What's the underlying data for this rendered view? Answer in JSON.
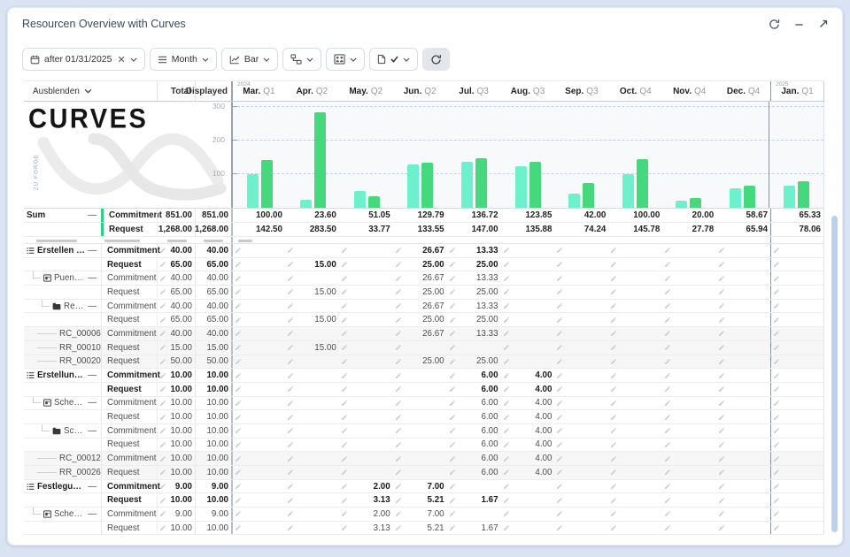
{
  "window": {
    "title": "Resourcen Overview with Curves"
  },
  "toolbar": {
    "date_filter": {
      "text": "after 01/31/2025"
    },
    "interval": {
      "text": "Month"
    },
    "chart_type": {
      "text": "Bar"
    }
  },
  "logo": {
    "title": "CURVES",
    "vertical_text": "2U FORGE"
  },
  "table": {
    "hide_label": "Ausblenden",
    "columns": {
      "total": "Total",
      "displayed": "Displayed"
    },
    "months": [
      {
        "label": "Mar.",
        "quarter": "Q1",
        "year": "2024"
      },
      {
        "label": "Apr.",
        "quarter": "Q2"
      },
      {
        "label": "May.",
        "quarter": "Q2"
      },
      {
        "label": "Jun.",
        "quarter": "Q2"
      },
      {
        "label": "Jul.",
        "quarter": "Q3"
      },
      {
        "label": "Aug.",
        "quarter": "Q3"
      },
      {
        "label": "Sep.",
        "quarter": "Q3"
      },
      {
        "label": "Oct.",
        "quarter": "Q4"
      },
      {
        "label": "Nov.",
        "quarter": "Q4"
      },
      {
        "label": "Dec.",
        "quarter": "Q4"
      },
      {
        "label": "Jan.",
        "quarter": "Q1",
        "year": "2025"
      }
    ],
    "sum": {
      "label": "Sum",
      "rows": [
        {
          "series": "Commitment",
          "total": "851.00",
          "displayed": "851.00",
          "cells": [
            "100.00",
            "23.60",
            "51.05",
            "129.79",
            "136.72",
            "123.85",
            "42.00",
            "100.00",
            "20.00",
            "58.67",
            "65.33"
          ]
        },
        {
          "series": "Request",
          "total": "1,268.00",
          "displayed": "1,268.00",
          "cells": [
            "142.50",
            "283.50",
            "33.77",
            "133.55",
            "147.00",
            "135.88",
            "74.24",
            "145.78",
            "27.78",
            "65.94",
            "78.06"
          ]
        }
      ]
    },
    "rows": [
      {
        "name": "Erstellen eines ...",
        "icon": "list",
        "indent": 0,
        "collapse": true,
        "bold": true,
        "series": "Commitment",
        "total": "40.00",
        "displayed": "40.00",
        "cells": [
          "",
          "",
          "",
          "26.67",
          "13.33",
          "",
          "",
          "",
          "",
          "",
          ""
        ]
      },
      {
        "name": "",
        "bold": true,
        "series": "Request",
        "total": "65.00",
        "displayed": "65.00",
        "cells": [
          "",
          "15.00",
          "",
          "25.00",
          "25.00",
          "",
          "",
          "",
          "",
          "",
          ""
        ]
      },
      {
        "name": "Puente de la...",
        "icon": "card",
        "indent": 1,
        "collapse": true,
        "series": "Commitment",
        "total": "40.00",
        "displayed": "40.00",
        "cells": [
          "",
          "",
          "",
          "26.67",
          "13.33",
          "",
          "",
          "",
          "",
          "",
          ""
        ]
      },
      {
        "name": "",
        "series": "Request",
        "total": "65.00",
        "displayed": "65.00",
        "cells": [
          "",
          "15.00",
          "",
          "25.00",
          "25.00",
          "",
          "",
          "",
          "",
          "",
          ""
        ]
      },
      {
        "name": "Reparatur ...",
        "icon": "folder",
        "indent": 2,
        "collapse": true,
        "series": "Commitment",
        "total": "40.00",
        "displayed": "40.00",
        "cells": [
          "",
          "",
          "",
          "26.67",
          "13.33",
          "",
          "",
          "",
          "",
          "",
          ""
        ]
      },
      {
        "name": "",
        "series": "Request",
        "total": "65.00",
        "displayed": "65.00",
        "cells": [
          "",
          "15.00",
          "",
          "25.00",
          "25.00",
          "",
          "",
          "",
          "",
          "",
          ""
        ]
      },
      {
        "name": "RC_00006",
        "indent": 3,
        "leaf": true,
        "gray": true,
        "series": "Commitment",
        "total": "40.00",
        "displayed": "40.00",
        "cells": [
          "",
          "",
          "",
          "26.67",
          "13.33",
          "",
          "",
          "",
          "",
          "",
          ""
        ]
      },
      {
        "name": "RR_00010",
        "indent": 3,
        "leaf": true,
        "gray": true,
        "series": "Request",
        "total": "15.00",
        "displayed": "15.00",
        "cells": [
          "",
          "15.00",
          "",
          "",
          "",
          "",
          "",
          "",
          "",
          "",
          ""
        ]
      },
      {
        "name": "RR_00020",
        "indent": 3,
        "leaf": true,
        "gray": true,
        "series": "Request",
        "total": "50.00",
        "displayed": "50.00",
        "cells": [
          "",
          "",
          "",
          "25.00",
          "25.00",
          "",
          "",
          "",
          "",
          "",
          ""
        ]
      },
      {
        "name": "Erstellung eine...",
        "icon": "list",
        "indent": 0,
        "collapse": true,
        "bold": true,
        "series": "Commitment",
        "total": "10.00",
        "displayed": "10.00",
        "cells": [
          "",
          "",
          "",
          "",
          "6.00",
          "4.00",
          "",
          "",
          "",
          "",
          ""
        ]
      },
      {
        "name": "",
        "bold": true,
        "series": "Request",
        "total": "10.00",
        "displayed": "10.00",
        "cells": [
          "",
          "",
          "",
          "",
          "6.00",
          "4.00",
          "",
          "",
          "",
          "",
          ""
        ]
      },
      {
        "name": "Schedule SP...",
        "icon": "card",
        "indent": 1,
        "collapse": true,
        "series": "Commitment",
        "total": "10.00",
        "displayed": "10.00",
        "cells": [
          "",
          "",
          "",
          "",
          "6.00",
          "4.00",
          "",
          "",
          "",
          "",
          ""
        ]
      },
      {
        "name": "",
        "series": "Request",
        "total": "10.00",
        "displayed": "10.00",
        "cells": [
          "",
          "",
          "",
          "",
          "6.00",
          "4.00",
          "",
          "",
          "",
          "",
          ""
        ]
      },
      {
        "name": "Schmerzpr...",
        "icon": "folder",
        "indent": 2,
        "collapse": true,
        "series": "Commitment",
        "total": "10.00",
        "displayed": "10.00",
        "cells": [
          "",
          "",
          "",
          "",
          "6.00",
          "4.00",
          "",
          "",
          "",
          "",
          ""
        ]
      },
      {
        "name": "",
        "series": "Request",
        "total": "10.00",
        "displayed": "10.00",
        "cells": [
          "",
          "",
          "",
          "",
          "6.00",
          "4.00",
          "",
          "",
          "",
          "",
          ""
        ]
      },
      {
        "name": "RC_00012",
        "indent": 3,
        "leaf": true,
        "gray": true,
        "series": "Commitment",
        "total": "10.00",
        "displayed": "10.00",
        "cells": [
          "",
          "",
          "",
          "",
          "6.00",
          "4.00",
          "",
          "",
          "",
          "",
          ""
        ]
      },
      {
        "name": "RR_00026",
        "indent": 3,
        "leaf": true,
        "gray": true,
        "series": "Request",
        "total": "10.00",
        "displayed": "10.00",
        "cells": [
          "",
          "",
          "",
          "",
          "6.00",
          "4.00",
          "",
          "",
          "",
          "",
          ""
        ]
      },
      {
        "name": "Festlegung der ...",
        "icon": "list",
        "indent": 0,
        "collapse": true,
        "bold": true,
        "series": "Commitment",
        "total": "9.00",
        "displayed": "9.00",
        "cells": [
          "",
          "",
          "2.00",
          "7.00",
          "",
          "",
          "",
          "",
          "",
          "",
          ""
        ]
      },
      {
        "name": "",
        "bold": true,
        "series": "Request",
        "total": "10.00",
        "displayed": "10.00",
        "cells": [
          "",
          "",
          "3.13",
          "5.21",
          "1.67",
          "",
          "",
          "",
          "",
          "",
          ""
        ]
      },
      {
        "name": "Schedule SP...",
        "icon": "card",
        "indent": 1,
        "collapse": true,
        "series": "Commitment",
        "total": "9.00",
        "displayed": "9.00",
        "cells": [
          "",
          "",
          "2.00",
          "7.00",
          "",
          "",
          "",
          "",
          "",
          "",
          ""
        ]
      },
      {
        "name": "",
        "series": "Request",
        "total": "10.00",
        "displayed": "10.00",
        "cells": [
          "",
          "",
          "3.13",
          "5.21",
          "1.67",
          "",
          "",
          "",
          "",
          "",
          ""
        ]
      }
    ]
  },
  "chart_data": {
    "type": "bar",
    "categories": [
      "Mar. Q1 2024",
      "Apr. Q2",
      "May. Q2",
      "Jun. Q2",
      "Jul. Q3",
      "Aug. Q3",
      "Sep. Q3",
      "Oct. Q4",
      "Nov. Q4",
      "Dec. Q4",
      "Jan. Q1 2025"
    ],
    "series": [
      {
        "name": "Commitment",
        "color": "#6ff0cd",
        "values": [
          100.0,
          23.6,
          51.05,
          129.79,
          136.72,
          123.85,
          42.0,
          100.0,
          20.0,
          58.67,
          65.33
        ]
      },
      {
        "name": "Request",
        "color": "#45d87c",
        "values": [
          142.5,
          283.5,
          33.77,
          133.55,
          147.0,
          135.88,
          74.24,
          145.78,
          27.78,
          65.94,
          78.06
        ]
      }
    ],
    "title": "",
    "xlabel": "",
    "ylabel": "",
    "ylim": [
      0,
      320
    ],
    "yticks": [
      100,
      200,
      300
    ],
    "grid": true,
    "legend": "none"
  },
  "colors": {
    "commitment_bar": "#6ff0cd",
    "request_bar": "#45d87c",
    "sum_accent": "#2bd183",
    "page_background": "#d9e3f3",
    "scrollbar": "#bad0ee"
  }
}
